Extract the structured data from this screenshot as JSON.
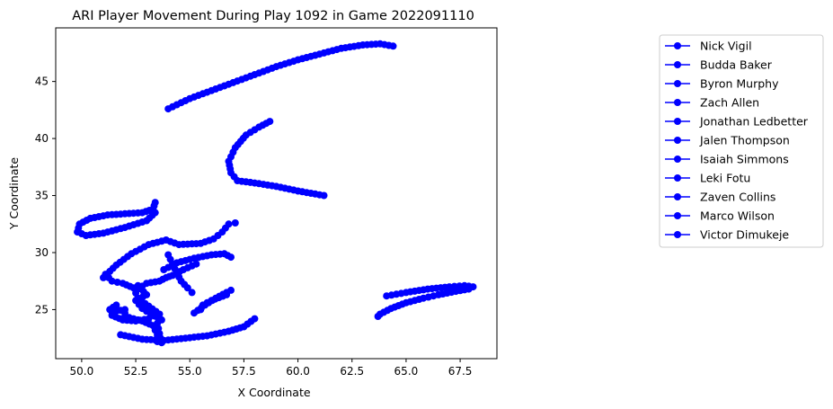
{
  "chart_data": {
    "type": "line",
    "title": "ARI Player Movement During Play 1092 in Game 2022091110",
    "xlabel": "X Coordinate",
    "ylabel": "Y Coordinate",
    "xlim": [
      48.8,
      69.2
    ],
    "ylim": [
      20.7,
      49.7
    ],
    "x_ticks": [
      "50.0",
      "52.5",
      "55.0",
      "57.5",
      "60.0",
      "62.5",
      "65.0",
      "67.5"
    ],
    "y_ticks": [
      "25",
      "30",
      "35",
      "40",
      "45"
    ],
    "grid": false,
    "legend_position": "right",
    "color": "#0000ff",
    "series": [
      {
        "name": "Nick Vigil",
        "points": [
          [
            54.0,
            42.6
          ],
          [
            55.0,
            43.5
          ],
          [
            56.0,
            44.2
          ],
          [
            57.0,
            44.9
          ],
          [
            58.0,
            45.6
          ],
          [
            59.0,
            46.3
          ],
          [
            60.0,
            46.9
          ],
          [
            61.0,
            47.4
          ],
          [
            62.0,
            47.9
          ],
          [
            63.0,
            48.2
          ],
          [
            63.8,
            48.3
          ],
          [
            64.4,
            48.1
          ]
        ]
      },
      {
        "name": "Budda Baker",
        "points": [
          [
            61.2,
            35.0
          ],
          [
            60.0,
            35.4
          ],
          [
            59.0,
            35.8
          ],
          [
            58.0,
            36.1
          ],
          [
            57.2,
            36.3
          ],
          [
            56.9,
            37.0
          ],
          [
            56.8,
            38.0
          ],
          [
            57.1,
            39.2
          ],
          [
            57.6,
            40.3
          ],
          [
            58.2,
            41.0
          ],
          [
            58.7,
            41.5
          ]
        ]
      },
      {
        "name": "Byron Murphy",
        "points": [
          [
            53.4,
            34.4
          ],
          [
            53.3,
            33.8
          ],
          [
            52.8,
            33.5
          ],
          [
            52.0,
            33.4
          ],
          [
            51.2,
            33.3
          ],
          [
            50.4,
            33.0
          ],
          [
            49.9,
            32.5
          ],
          [
            49.8,
            31.8
          ],
          [
            50.2,
            31.5
          ],
          [
            51.0,
            31.7
          ],
          [
            52.0,
            32.2
          ],
          [
            53.0,
            32.8
          ],
          [
            53.4,
            33.5
          ]
        ]
      },
      {
        "name": "Zach Allen",
        "points": [
          [
            51.0,
            27.8
          ],
          [
            51.6,
            28.9
          ],
          [
            52.3,
            29.9
          ],
          [
            53.1,
            30.7
          ],
          [
            53.9,
            31.1
          ],
          [
            54.5,
            30.7
          ],
          [
            55.5,
            30.8
          ],
          [
            56.1,
            31.2
          ],
          [
            56.5,
            31.8
          ],
          [
            56.8,
            32.5
          ],
          [
            57.1,
            32.6
          ]
        ]
      },
      {
        "name": "Jonathan Ledbetter",
        "points": [
          [
            51.8,
            22.8
          ],
          [
            52.8,
            22.4
          ],
          [
            53.8,
            22.3
          ],
          [
            54.8,
            22.5
          ],
          [
            55.8,
            22.7
          ],
          [
            56.8,
            23.1
          ],
          [
            57.5,
            23.5
          ],
          [
            58.0,
            24.2
          ]
        ]
      },
      {
        "name": "Jalen Thompson",
        "points": [
          [
            67.9,
            26.8
          ],
          [
            67.3,
            26.6
          ],
          [
            66.5,
            26.3
          ],
          [
            65.8,
            26.0
          ],
          [
            65.0,
            25.6
          ],
          [
            64.3,
            25.1
          ],
          [
            63.8,
            24.6
          ],
          [
            63.7,
            24.4
          ]
        ]
      },
      {
        "name": "Isaiah Simmons",
        "points": [
          [
            64.1,
            26.2
          ],
          [
            65.0,
            26.5
          ],
          [
            66.0,
            26.8
          ],
          [
            67.0,
            27.0
          ],
          [
            67.7,
            27.1
          ],
          [
            68.1,
            27.0
          ]
        ]
      },
      {
        "name": "Leki Fotu",
        "points": [
          [
            53.8,
            28.5
          ],
          [
            54.4,
            29.1
          ],
          [
            55.2,
            29.5
          ],
          [
            56.0,
            29.8
          ],
          [
            56.6,
            29.9
          ],
          [
            56.9,
            29.6
          ]
        ]
      },
      {
        "name": "Zaven Collins",
        "points": [
          [
            51.1,
            28.1
          ],
          [
            51.4,
            27.5
          ],
          [
            51.9,
            27.3
          ],
          [
            52.4,
            26.9
          ],
          [
            52.6,
            26.0
          ],
          [
            53.1,
            25.3
          ],
          [
            53.6,
            24.6
          ],
          [
            53.5,
            23.8
          ],
          [
            53.6,
            22.9
          ],
          [
            53.7,
            22.1
          ]
        ]
      },
      {
        "name": "Marco Wilson",
        "points": [
          [
            55.2,
            24.7
          ],
          [
            55.7,
            25.4
          ],
          [
            56.2,
            26.0
          ],
          [
            56.7,
            26.5
          ],
          [
            56.9,
            26.7
          ]
        ]
      },
      {
        "name": "Victor Dimukeje",
        "points": [
          [
            51.4,
            24.8
          ],
          [
            52.0,
            25.0
          ],
          [
            52.0,
            24.4
          ],
          [
            52.8,
            24.0
          ],
          [
            53.3,
            23.6
          ],
          [
            53.5,
            22.8
          ],
          [
            53.5,
            22.2
          ]
        ]
      }
    ],
    "extra_traces": [
      [
        [
          52.6,
          26.8
        ],
        [
          53.0,
          27.3
        ],
        [
          53.6,
          27.5
        ],
        [
          53.9,
          27.8
        ],
        [
          54.2,
          28.0
        ],
        [
          54.7,
          28.5
        ],
        [
          55.3,
          29.0
        ]
      ],
      [
        [
          52.6,
          27.1
        ],
        [
          53.0,
          26.3
        ],
        [
          52.5,
          25.8
        ],
        [
          52.8,
          25.1
        ],
        [
          53.2,
          24.6
        ],
        [
          53.7,
          24.1
        ]
      ],
      [
        [
          54.0,
          29.8
        ],
        [
          54.2,
          29.0
        ],
        [
          54.4,
          28.2
        ],
        [
          54.6,
          27.5
        ],
        [
          54.9,
          26.9
        ],
        [
          55.1,
          26.5
        ]
      ],
      [
        [
          55.5,
          25.0
        ],
        [
          55.6,
          25.4
        ],
        [
          56.0,
          25.8
        ],
        [
          56.7,
          26.3
        ]
      ],
      [
        [
          51.6,
          25.4
        ],
        [
          51.3,
          25.0
        ],
        [
          51.4,
          24.5
        ],
        [
          51.9,
          24.1
        ],
        [
          52.5,
          24.0
        ],
        [
          53.1,
          24.2
        ]
      ]
    ]
  }
}
